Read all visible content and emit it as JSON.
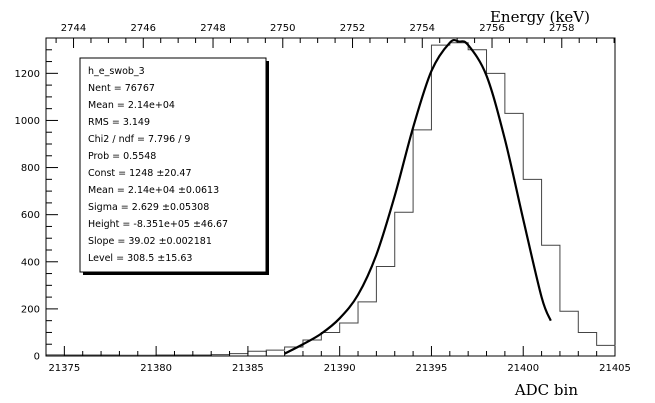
{
  "chart_data": {
    "type": "histogram",
    "xlabel": "ADC bin",
    "top_axis_label": "Energy (keV)",
    "xlim": [
      21374,
      21405
    ],
    "ylim": [
      0,
      1350
    ],
    "x_ticks": [
      "21375",
      "21380",
      "21385",
      "21390",
      "21395",
      "21400",
      "21405"
    ],
    "y_ticks": [
      "0",
      "200",
      "400",
      "600",
      "800",
      "1000",
      "1200"
    ],
    "top_ticks": [
      "2744",
      "2746",
      "2748",
      "2750",
      "2752",
      "2754",
      "2756",
      "2758"
    ],
    "top_tick_map": {
      "x0": 21375.5,
      "e0": 2744,
      "adc_per_kev": 1.9
    },
    "bins": {
      "edges": [
        21374,
        21375,
        21376,
        21377,
        21378,
        21379,
        21380,
        21381,
        21382,
        21383,
        21384,
        21385,
        21386,
        21387,
        21388,
        21389,
        21390,
        21391,
        21392,
        21393,
        21394,
        21395,
        21396,
        21397,
        21398,
        21399,
        21400,
        21401,
        21402,
        21403,
        21404,
        21405
      ],
      "counts": [
        5,
        4,
        4,
        4,
        3,
        3,
        4,
        4,
        4,
        6,
        10,
        20,
        25,
        38,
        68,
        100,
        140,
        230,
        380,
        610,
        960,
        1320,
        1330,
        1300,
        1200,
        1030,
        750,
        470,
        190,
        100,
        45
      ]
    },
    "fit_curve": {
      "x": [
        21387.0,
        21388,
        21389,
        21390,
        21391,
        21392,
        21393,
        21394,
        21395,
        21396,
        21396.5,
        21397,
        21398,
        21399,
        21400,
        21401,
        21401.5
      ],
      "y": [
        10,
        50,
        95,
        160,
        260,
        430,
        680,
        970,
        1210,
        1330,
        1335,
        1320,
        1190,
        920,
        580,
        250,
        150
      ]
    },
    "stats_box": {
      "title": "h_e_swob_3",
      "lines": [
        "Nent = 76767",
        "Mean  = 2.14e+04",
        "RMS   =  3.149",
        "Chi2 / ndf = 7.796 / 9",
        "Prob  = 0.5548",
        "Const   =  1248  ±20.47",
        "Mean    = 2.14e+04  ±0.0613",
        "Sigma   =  2.629  ±0.05308",
        "Height  = -8.351e+05  ±46.67",
        "Slope   = 39.02  ±0.002181",
        "Level   = 308.5  ±15.63"
      ]
    }
  }
}
